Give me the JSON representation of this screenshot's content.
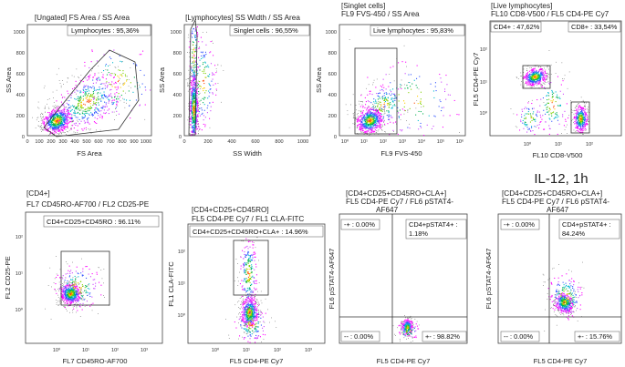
{
  "figure_caption": "IL-12, 1h",
  "chart_data": [
    {
      "type": "scatter",
      "title": [
        "[Ungated] FS Area / SS Area"
      ],
      "xlabel": "FS Area",
      "ylabel": "SS Area",
      "xscale": "linear",
      "yscale": "linear",
      "xlim": [
        0,
        1050
      ],
      "ylim": [
        0,
        1050
      ],
      "xticks": [
        "0",
        "100",
        "200",
        "300",
        "400",
        "500",
        "600",
        "700",
        "800",
        "900",
        "1000"
      ],
      "yticks": [
        "0",
        "200",
        "400",
        "600",
        "800",
        "1000"
      ],
      "gates": [
        {
          "shape": "polygon",
          "label": "Lymphocytes : 95,36%",
          "label_pos": "top-right"
        }
      ],
      "density": "population centered near FS 200, SS 150 with tail to upper right",
      "quadrant_lines": null
    },
    {
      "type": "scatter",
      "title": [
        "[Lymphocytes] SS Width / SS Area"
      ],
      "xlabel": "SS Width",
      "ylabel": "SS Area",
      "xscale": "linear",
      "yscale": "linear",
      "xlim": [
        0,
        1050
      ],
      "ylim": [
        0,
        1050
      ],
      "xticks": [
        "0",
        "200",
        "400",
        "600",
        "800",
        "1000"
      ],
      "yticks": [
        "0",
        "200",
        "400",
        "600",
        "800",
        "1000"
      ],
      "gates": [
        {
          "shape": "polygon",
          "label": "Singlet cells : 96,55%",
          "label_pos": "top-right"
        }
      ],
      "density": "narrow vertical population near SS Width 40"
    },
    {
      "type": "scatter",
      "title": [
        "[Singlet cells]",
        "FL9 FVS-450 / SS Area"
      ],
      "xlabel": "FL9 FVS-450",
      "ylabel": "SS Area",
      "xscale": "log",
      "yscale": "linear",
      "xlim": [
        1,
        1000000
      ],
      "ylim": [
        0,
        1050
      ],
      "xticks": [
        "10⁰",
        "10¹",
        "10²",
        "10³",
        "10⁴",
        "10⁵",
        "10⁶"
      ],
      "yticks": [
        "0",
        "200",
        "400",
        "600",
        "800",
        "1000"
      ],
      "gates": [
        {
          "shape": "rect",
          "label": "Live lymphocytes : 95,83%",
          "label_pos": "top-right"
        }
      ],
      "density": "population near FVS-450 10^1.3, SS 150"
    },
    {
      "type": "scatter",
      "title": [
        "[Live lymphocytes]",
        "FL10 CD8-V500 / FL5 CD4-PE Cy7"
      ],
      "xlabel": "FL10 CD8-V500",
      "ylabel": "FL5 CD4-PE Cy7",
      "xscale": "log",
      "yscale": "log",
      "xticks": [
        "10⁰",
        "10¹",
        "10²"
      ],
      "yticks": [
        "10⁰",
        "10¹",
        "10²"
      ],
      "gates": [
        {
          "shape": "rect",
          "label": "CD4+ : 47,62%",
          "label_pos": "top-left"
        },
        {
          "shape": "rect",
          "label": "CD8+ : 33,54%",
          "label_pos": "top-right"
        }
      ],
      "density": "CD4+ cluster upper-left, CD8+ cluster lower-right"
    },
    {
      "type": "scatter",
      "title": [
        "[CD4+]",
        "FL7 CD45RO-AF700 / FL2 CD25-PE"
      ],
      "xlabel": "FL7 CD45RO-AF700",
      "ylabel": "FL2 CD25-PE",
      "xscale": "log",
      "yscale": "log",
      "xticks": [
        "10⁰",
        "10¹",
        "10²",
        "10³"
      ],
      "yticks": [
        "10⁰",
        "10¹",
        "10²"
      ],
      "gates": [
        {
          "shape": "rect",
          "label": "CD4+CD25+CD45RO : 96.11%",
          "label_pos": "top"
        }
      ]
    },
    {
      "type": "scatter",
      "title": [
        "[CD4+CD25+CD45RO]",
        "FL5 CD4-PE Cy7 / FL1 CLA-FITC"
      ],
      "xlabel": "FL5 CD4-PE Cy7",
      "ylabel": "FL1 CLA-FITC",
      "xscale": "log",
      "yscale": "log",
      "xticks": [
        "10⁰",
        "10¹",
        "10²",
        "10³"
      ],
      "yticks": [
        "10⁰",
        "10¹",
        "10²"
      ],
      "gates": [
        {
          "shape": "rect",
          "label": "CD4+CD25+CD45RO+CLA+ : 14.96%",
          "label_pos": "top"
        }
      ]
    },
    {
      "type": "scatter",
      "title": [
        "[CD4+CD25+CD45RO+CLA+]",
        "FL5 CD4-PE Cy7 / FL6 pSTAT4-",
        "AF647"
      ],
      "xlabel": "FL5 CD4-PE Cy7",
      "ylabel": "FL6 pSTAT4-AF647",
      "xscale": "log",
      "yscale": "log",
      "xticks": [
        "10⁰",
        "10¹",
        "10²",
        "10³"
      ],
      "yticks": [
        "10⁰",
        "10¹",
        "10²"
      ],
      "quadrants": {
        "top_left": "-+ : 0.00%",
        "top_right": [
          "CD4+pSTAT4+ :",
          "1.18%"
        ],
        "bottom_left": "-- : 0.00%",
        "bottom_right": "+- : 98.82%"
      }
    },
    {
      "type": "scatter",
      "title": [
        "[CD4+CD25+CD45RO+CLA+]",
        "FL5 CD4-PE Cy7 / FL6 pSTAT4-",
        "AF647"
      ],
      "xlabel": "FL5 CD4-PE Cy7",
      "ylabel": "FL6 pSTAT4-AF647",
      "xscale": "log",
      "yscale": "log",
      "xticks": [
        "10⁰",
        "10¹",
        "10²",
        "10³"
      ],
      "yticks": [
        "10⁰",
        "10¹",
        "10²"
      ],
      "quadrants": {
        "top_left": "-+ : 0.00%",
        "top_right": [
          "CD4+pSTAT4+ :",
          "84.24%"
        ],
        "bottom_left": "-- : 0.00%",
        "bottom_right": "+- : 15.76%"
      }
    }
  ],
  "palette": {
    "dots": "#555555",
    "density": [
      "#ff00ff",
      "#cc44ff",
      "#3355ff",
      "#00b8d0",
      "#00b050",
      "#7fd000",
      "#ffcc00",
      "#ff4400"
    ]
  }
}
